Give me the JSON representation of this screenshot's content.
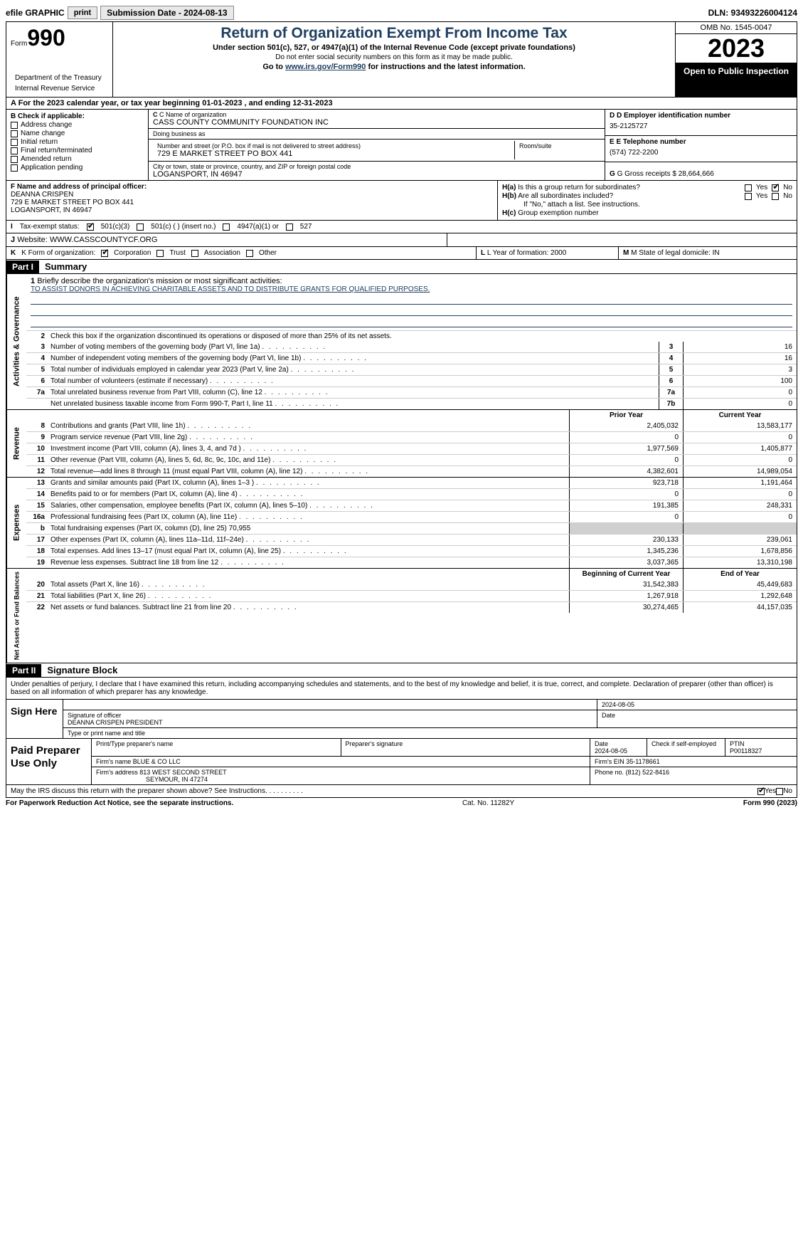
{
  "toolbar": {
    "efile_label": "efile GRAPHIC",
    "print_btn": "print",
    "submission_label": "Submission Date - 2024-08-13",
    "dln_label": "DLN: 93493226004124"
  },
  "header": {
    "form_word": "Form",
    "form_num": "990",
    "dept": "Department of the Treasury",
    "irs": "Internal Revenue Service",
    "title": "Return of Organization Exempt From Income Tax",
    "sub": "Under section 501(c), 527, or 4947(a)(1) of the Internal Revenue Code (except private foundations)",
    "note": "Do not enter social security numbers on this form as it may be made public.",
    "goto": "Go to ",
    "link": "www.irs.gov/Form990",
    "goto2": " for instructions and the latest information.",
    "omb": "OMB No. 1545-0047",
    "year": "2023",
    "pub": "Open to Public Inspection"
  },
  "row_a": "For the 2023 calendar year, or tax year beginning 01-01-2023   , and ending 12-31-2023",
  "section_b": {
    "label": "B Check if applicable:",
    "opts": [
      "Address change",
      "Name change",
      "Initial return",
      "Final return/terminated",
      "Amended return",
      "Application pending"
    ]
  },
  "section_c": {
    "name_lbl": "C Name of organization",
    "name": "CASS COUNTY COMMUNITY FOUNDATION INC",
    "dba_lbl": "Doing business as",
    "dba": "",
    "addr_lbl": "Number and street (or P.O. box if mail is not delivered to street address)",
    "addr": "729 E MARKET STREET PO BOX 441",
    "room_lbl": "Room/suite",
    "city_lbl": "City or town, state or province, country, and ZIP or foreign postal code",
    "city": "LOGANSPORT, IN  46947"
  },
  "section_d": {
    "lbl": "D Employer identification number",
    "val": "35-2125727"
  },
  "section_e": {
    "lbl": "E Telephone number",
    "val": "(574) 722-2200"
  },
  "section_g": {
    "lbl": "G Gross receipts $",
    "val": "28,664,666"
  },
  "section_f": {
    "lbl": "F  Name and address of principal officer:",
    "name": "DEANNA CRISPEN",
    "addr1": "729 E MARKET STREET PO BOX 441",
    "addr2": "LOGANSPORT, IN  46947"
  },
  "section_h": {
    "a_lbl": "H(a)  Is this a group return for subordinates?",
    "a_yes": false,
    "a_no": true,
    "b_lbl": "H(b)  Are all subordinates included?",
    "b_yes": false,
    "b_no": false,
    "note": "If \"No,\" attach a list. See instructions.",
    "c_lbl": "H(c)  Group exemption number",
    "c_val": ""
  },
  "row_i": {
    "lbl": "Tax-exempt status:",
    "opt1": "501(c)(3)",
    "opt1_chk": true,
    "opt2": "501(c) (  ) (insert no.)",
    "opt3": "4947(a)(1) or",
    "opt4": "527"
  },
  "row_j": {
    "lbl": "Website:",
    "val": "WWW.CASSCOUNTYCF.ORG"
  },
  "row_k": {
    "lbl": "K Form of organization:",
    "corp": "Corporation",
    "corp_chk": true,
    "trust": "Trust",
    "assoc": "Association",
    "other": "Other",
    "l_lbl": "L Year of formation:",
    "l_val": "2000",
    "m_lbl": "M State of legal domicile:",
    "m_val": "IN"
  },
  "part1": {
    "hdr": "Part I",
    "title": "Summary",
    "mission_lbl": "Briefly describe the organization's mission or most significant activities:",
    "mission": "TO ASSIST DONORS IN ACHIEVING CHARITABLE ASSETS AND TO DISTRIBUTE GRANTS FOR QUALIFIED PURPOSES.",
    "line2": "Check this box      if the organization discontinued its operations or disposed of more than 25% of its net assets.",
    "side_gov": "Activities & Governance",
    "side_rev": "Revenue",
    "side_exp": "Expenses",
    "side_net": "Net Assets or Fund Balances",
    "gov_lines": [
      {
        "n": "3",
        "t": "Number of voting members of the governing body (Part VI, line 1a)",
        "box": "3",
        "v": "16"
      },
      {
        "n": "4",
        "t": "Number of independent voting members of the governing body (Part VI, line 1b)",
        "box": "4",
        "v": "16"
      },
      {
        "n": "5",
        "t": "Total number of individuals employed in calendar year 2023 (Part V, line 2a)",
        "box": "5",
        "v": "3"
      },
      {
        "n": "6",
        "t": "Total number of volunteers (estimate if necessary)",
        "box": "6",
        "v": "100"
      },
      {
        "n": "7a",
        "t": "Total unrelated business revenue from Part VIII, column (C), line 12",
        "box": "7a",
        "v": "0"
      },
      {
        "n": "",
        "t": "Net unrelated business taxable income from Form 990-T, Part I, line 11",
        "box": "7b",
        "v": "0"
      }
    ],
    "col_prior": "Prior Year",
    "col_curr": "Current Year",
    "col_beg": "Beginning of Current Year",
    "col_end": "End of Year",
    "rev_lines": [
      {
        "n": "8",
        "t": "Contributions and grants (Part VIII, line 1h)",
        "p": "2,405,032",
        "c": "13,583,177"
      },
      {
        "n": "9",
        "t": "Program service revenue (Part VIII, line 2g)",
        "p": "0",
        "c": "0"
      },
      {
        "n": "10",
        "t": "Investment income (Part VIII, column (A), lines 3, 4, and 7d )",
        "p": "1,977,569",
        "c": "1,405,877"
      },
      {
        "n": "11",
        "t": "Other revenue (Part VIII, column (A), lines 5, 6d, 8c, 9c, 10c, and 11e)",
        "p": "0",
        "c": "0"
      },
      {
        "n": "12",
        "t": "Total revenue—add lines 8 through 11 (must equal Part VIII, column (A), line 12)",
        "p": "4,382,601",
        "c": "14,989,054"
      }
    ],
    "exp_lines": [
      {
        "n": "13",
        "t": "Grants and similar amounts paid (Part IX, column (A), lines 1–3 )",
        "p": "923,718",
        "c": "1,191,464"
      },
      {
        "n": "14",
        "t": "Benefits paid to or for members (Part IX, column (A), line 4)",
        "p": "0",
        "c": "0"
      },
      {
        "n": "15",
        "t": "Salaries, other compensation, employee benefits (Part IX, column (A), lines 5–10)",
        "p": "191,385",
        "c": "248,331"
      },
      {
        "n": "16a",
        "t": "Professional fundraising fees (Part IX, column (A), line 11e)",
        "p": "0",
        "c": "0"
      },
      {
        "n": "b",
        "t": "Total fundraising expenses (Part IX, column (D), line 25) 70,955",
        "p": "",
        "c": "",
        "shade": true
      },
      {
        "n": "17",
        "t": "Other expenses (Part IX, column (A), lines 11a–11d, 11f–24e)",
        "p": "230,133",
        "c": "239,061"
      },
      {
        "n": "18",
        "t": "Total expenses. Add lines 13–17 (must equal Part IX, column (A), line 25)",
        "p": "1,345,236",
        "c": "1,678,856"
      },
      {
        "n": "19",
        "t": "Revenue less expenses. Subtract line 18 from line 12",
        "p": "3,037,365",
        "c": "13,310,198"
      }
    ],
    "net_lines": [
      {
        "n": "20",
        "t": "Total assets (Part X, line 16)",
        "p": "31,542,383",
        "c": "45,449,683"
      },
      {
        "n": "21",
        "t": "Total liabilities (Part X, line 26)",
        "p": "1,267,918",
        "c": "1,292,648"
      },
      {
        "n": "22",
        "t": "Net assets or fund balances. Subtract line 21 from line 20",
        "p": "30,274,465",
        "c": "44,157,035"
      }
    ]
  },
  "part2": {
    "hdr": "Part II",
    "title": "Signature Block",
    "intro": "Under penalties of perjury, I declare that I have examined this return, including accompanying schedules and statements, and to the best of my knowledge and belief, it is true, correct, and complete. Declaration of preparer (other than officer) is based on all information of which preparer has any knowledge.",
    "sign_here": "Sign Here",
    "sig_date": "2024-08-05",
    "sig_lbl": "Signature of officer",
    "sig_name": "DEANNA CRISPEN  PRESIDENT",
    "sig_title_lbl": "Type or print name and title",
    "date_lbl": "Date",
    "prep": "Paid Preparer Use Only",
    "prep_name_lbl": "Print/Type preparer's name",
    "prep_sig_lbl": "Preparer's signature",
    "prep_date_lbl": "Date",
    "prep_date": "2024-08-05",
    "prep_self_lbl": "Check       if self-employed",
    "ptin_lbl": "PTIN",
    "ptin": "P00118327",
    "firm_name_lbl": "Firm's name",
    "firm_name": "BLUE & CO LLC",
    "firm_ein_lbl": "Firm's EIN",
    "firm_ein": "35-1178661",
    "firm_addr_lbl": "Firm's address",
    "firm_addr1": "813 WEST SECOND STREET",
    "firm_addr2": "SEYMOUR, IN  47274",
    "firm_phone_lbl": "Phone no.",
    "firm_phone": "(812) 522-8416",
    "discuss": "May the IRS discuss this return with the preparer shown above? See Instructions.",
    "discuss_yes": true
  },
  "footer": {
    "pra": "For Paperwork Reduction Act Notice, see the separate instructions.",
    "cat": "Cat. No. 11282Y",
    "form": "Form 990 (2023)"
  }
}
